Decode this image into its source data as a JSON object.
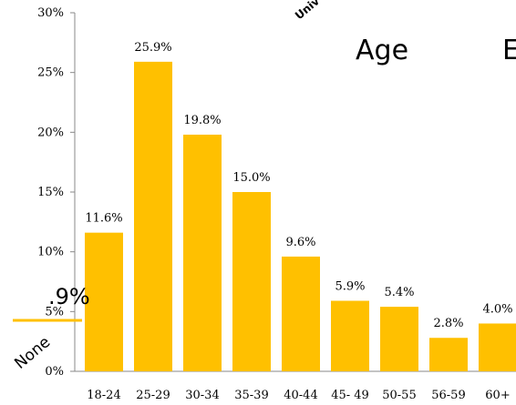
{
  "chart_data": {
    "type": "bar",
    "categories": [
      "18-24",
      "25-29",
      "30-34",
      "35-39",
      "40-44",
      "45- 49",
      "50-55",
      "56-59",
      "60+"
    ],
    "values": [
      11.6,
      25.9,
      19.8,
      15.0,
      9.6,
      5.9,
      5.4,
      2.8,
      4.0
    ],
    "data_labels": [
      "11.6%",
      "25.9%",
      "19.8%",
      "15.0%",
      "9.6%",
      "5.9%",
      "5.4%",
      "2.8%",
      "4.0%"
    ],
    "ylim": [
      0,
      30
    ],
    "yticks": [
      0,
      5,
      10,
      15,
      20,
      25,
      30
    ],
    "ytick_labels": [
      "0%",
      "5%",
      "10%",
      "15%",
      "20%",
      "25%",
      "30%"
    ],
    "bar_color": "#FFC000",
    "grid": false,
    "title": "",
    "xlabel": "",
    "ylabel": ""
  },
  "overlays": {
    "age_heading": "Age",
    "edge_letter": "E",
    "rotated_top": "Univ",
    "pct_fragment": ".9%",
    "none_label": "None",
    "accent_color": "#FFC000"
  }
}
